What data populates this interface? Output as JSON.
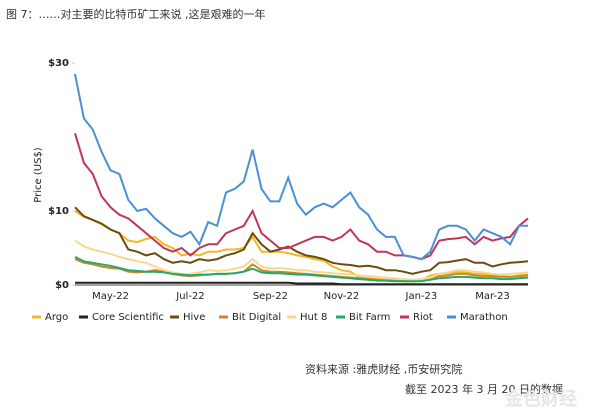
{
  "chart_data": {
    "type": "line",
    "title": "图 7：……对主要的比特币矿工来说 ,这是艰难的一年",
    "y_label": "Price (US$)",
    "source": "资料来源 :雅虎财经 ,币安研究院",
    "note": "截至 2023 年 3 月 20 日的数据",
    "watermark": "金色财经",
    "categories": [
      null,
      null,
      null,
      null,
      "May-22",
      null,
      null,
      null,
      null,
      null,
      null,
      null,
      null,
      "Jul-22",
      null,
      null,
      null,
      null,
      null,
      null,
      null,
      null,
      "Sep-22",
      null,
      null,
      null,
      null,
      null,
      null,
      null,
      "Nov-22",
      null,
      null,
      null,
      null,
      null,
      null,
      null,
      null,
      "Jan-23",
      null,
      null,
      null,
      null,
      null,
      null,
      null,
      "Mar-23",
      null,
      null,
      null,
      null
    ],
    "ylim": [
      0,
      30
    ],
    "yticks": [
      {
        "value": 0,
        "label": "$0"
      },
      {
        "value": 10,
        "label": "$10"
      },
      {
        "value": 30,
        "label": "$30"
      }
    ],
    "series": [
      {
        "name": "Argo",
        "color": "#f2b824",
        "values": [
          10,
          9.2,
          8.8,
          8.2,
          7.5,
          7,
          6,
          5.8,
          6.2,
          6.5,
          5.5,
          5,
          4,
          4.2,
          4,
          4.5,
          4.5,
          4.8,
          4.8,
          5,
          6.5,
          4.5,
          4.5,
          4.5,
          4.3,
          4,
          3.8,
          3.5,
          3.3,
          2.5,
          2,
          1.8,
          1,
          0.9,
          0.8,
          0.7,
          0.6,
          0.5,
          0.5,
          0.6,
          1.3,
          1.5,
          1.6,
          1.8,
          1.7,
          1.5,
          1.5,
          1.3,
          1.2,
          1.1,
          1.3,
          1.4
        ]
      },
      {
        "name": "Core Scientific",
        "color": "#222222",
        "values": [
          0.3,
          0.3,
          0.3,
          0.3,
          0.3,
          0.3,
          0.3,
          0.3,
          0.3,
          0.3,
          0.3,
          0.3,
          0.3,
          0.3,
          0.3,
          0.3,
          0.3,
          0.3,
          0.3,
          0.3,
          0.3,
          0.3,
          0.3,
          0.3,
          0.3,
          0.2,
          0.2,
          0.2,
          0.2,
          0.2,
          0.1,
          0.1,
          0.1,
          0.1,
          0.1,
          0.1,
          0.1,
          0.1,
          0.1,
          0.1,
          0.1,
          0.1,
          0.1,
          0.1,
          0.1,
          0.1,
          0.1,
          0.1,
          0.1,
          0.1,
          0.1,
          0.1
        ]
      },
      {
        "name": "Hive",
        "color": "#6b4b12",
        "values": [
          10.5,
          9.3,
          8.8,
          8.3,
          7.5,
          7,
          4.8,
          4.5,
          4,
          4.3,
          3.5,
          3,
          3.2,
          3,
          3.5,
          3.3,
          3.5,
          4,
          4.3,
          4.8,
          7,
          5.5,
          4.5,
          4.8,
          5.2,
          4.5,
          4,
          3.8,
          3.5,
          3,
          2.8,
          2.7,
          2.5,
          2.6,
          2.4,
          2,
          2,
          1.8,
          1.5,
          1.8,
          2,
          3,
          3.1,
          3.3,
          3.5,
          3,
          3,
          2.5,
          2.8,
          3,
          3.1,
          3.2
        ]
      },
      {
        "name": "Bit Digital",
        "color": "#c8892e",
        "values": [
          3.5,
          3,
          2.8,
          2.5,
          2.3,
          2.2,
          1.8,
          1.7,
          1.8,
          2,
          1.8,
          1.5,
          1.3,
          1.2,
          1.3,
          1.4,
          1.5,
          1.5,
          1.6,
          1.8,
          2.8,
          2,
          1.8,
          1.8,
          1.7,
          1.6,
          1.5,
          1.4,
          1.3,
          1.2,
          1.1,
          1,
          0.9,
          0.8,
          0.7,
          0.6,
          0.6,
          0.5,
          0.5,
          0.6,
          0.8,
          1.2,
          1.3,
          1.5,
          1.5,
          1.3,
          1.2,
          1.2,
          1.1,
          1.1,
          1.2,
          1.3
        ]
      },
      {
        "name": "Hut 8",
        "color": "#f5d98f",
        "values": [
          6,
          5.2,
          4.8,
          4.5,
          4.2,
          3.8,
          3.5,
          3.2,
          3,
          2.5,
          2,
          1.7,
          1.5,
          1.5,
          1.7,
          2,
          1.9,
          2,
          2.2,
          2.5,
          3.5,
          2.5,
          2.2,
          2.3,
          2.2,
          2,
          2,
          1.8,
          1.7,
          1.6,
          1.5,
          1.4,
          1.3,
          1.2,
          1.1,
          1,
          0.9,
          0.8,
          0.7,
          0.8,
          1,
          1.5,
          1.7,
          2,
          2,
          1.8,
          1.7,
          1.5,
          1.4,
          1.5,
          1.6,
          1.7
        ]
      },
      {
        "name": "Bit Farm",
        "color": "#27a86a",
        "values": [
          3.8,
          3.2,
          3,
          2.8,
          2.6,
          2.3,
          2,
          1.9,
          1.8,
          1.8,
          1.7,
          1.5,
          1.4,
          1.3,
          1.4,
          1.4,
          1.5,
          1.5,
          1.6,
          1.8,
          2.2,
          1.7,
          1.6,
          1.6,
          1.5,
          1.4,
          1.4,
          1.3,
          1.2,
          1.1,
          1,
          0.9,
          0.8,
          0.7,
          0.6,
          0.6,
          0.5,
          0.5,
          0.5,
          0.5,
          0.7,
          0.9,
          1,
          1.1,
          1.1,
          1,
          0.9,
          0.9,
          0.8,
          0.8,
          0.9,
          1
        ]
      },
      {
        "name": "Riot",
        "color": "#c0365a",
        "values": [
          20.5,
          16.5,
          15,
          12,
          10.5,
          9.5,
          9,
          8,
          7,
          6,
          5,
          4.5,
          5,
          4,
          5,
          5.5,
          5.5,
          7,
          7.5,
          8,
          10,
          7,
          6,
          5,
          5,
          5.5,
          6,
          6.5,
          6.5,
          6,
          6.5,
          7.5,
          6,
          5.5,
          4.5,
          4.5,
          4,
          4,
          3.8,
          3.5,
          4,
          6,
          6.2,
          6.3,
          6.5,
          5.5,
          6.5,
          6,
          6.3,
          6.5,
          8,
          9
        ]
      },
      {
        "name": "Marathon",
        "color": "#4a90d6",
        "values": [
          28.5,
          22.5,
          21,
          18,
          15.5,
          15,
          11.5,
          10,
          10.3,
          9,
          8,
          7,
          6.5,
          7.2,
          5.5,
          8.5,
          8,
          12.5,
          13,
          14,
          18.3,
          13,
          11.3,
          11.3,
          14.5,
          11,
          9.5,
          10.5,
          11,
          10.5,
          11.5,
          12.5,
          10.5,
          9.5,
          7.5,
          6.5,
          6.5,
          4,
          3.8,
          3.5,
          4.5,
          7.5,
          8,
          8,
          7.5,
          6,
          7.5,
          7,
          6.5,
          5.5,
          8,
          8
        ]
      }
    ]
  }
}
